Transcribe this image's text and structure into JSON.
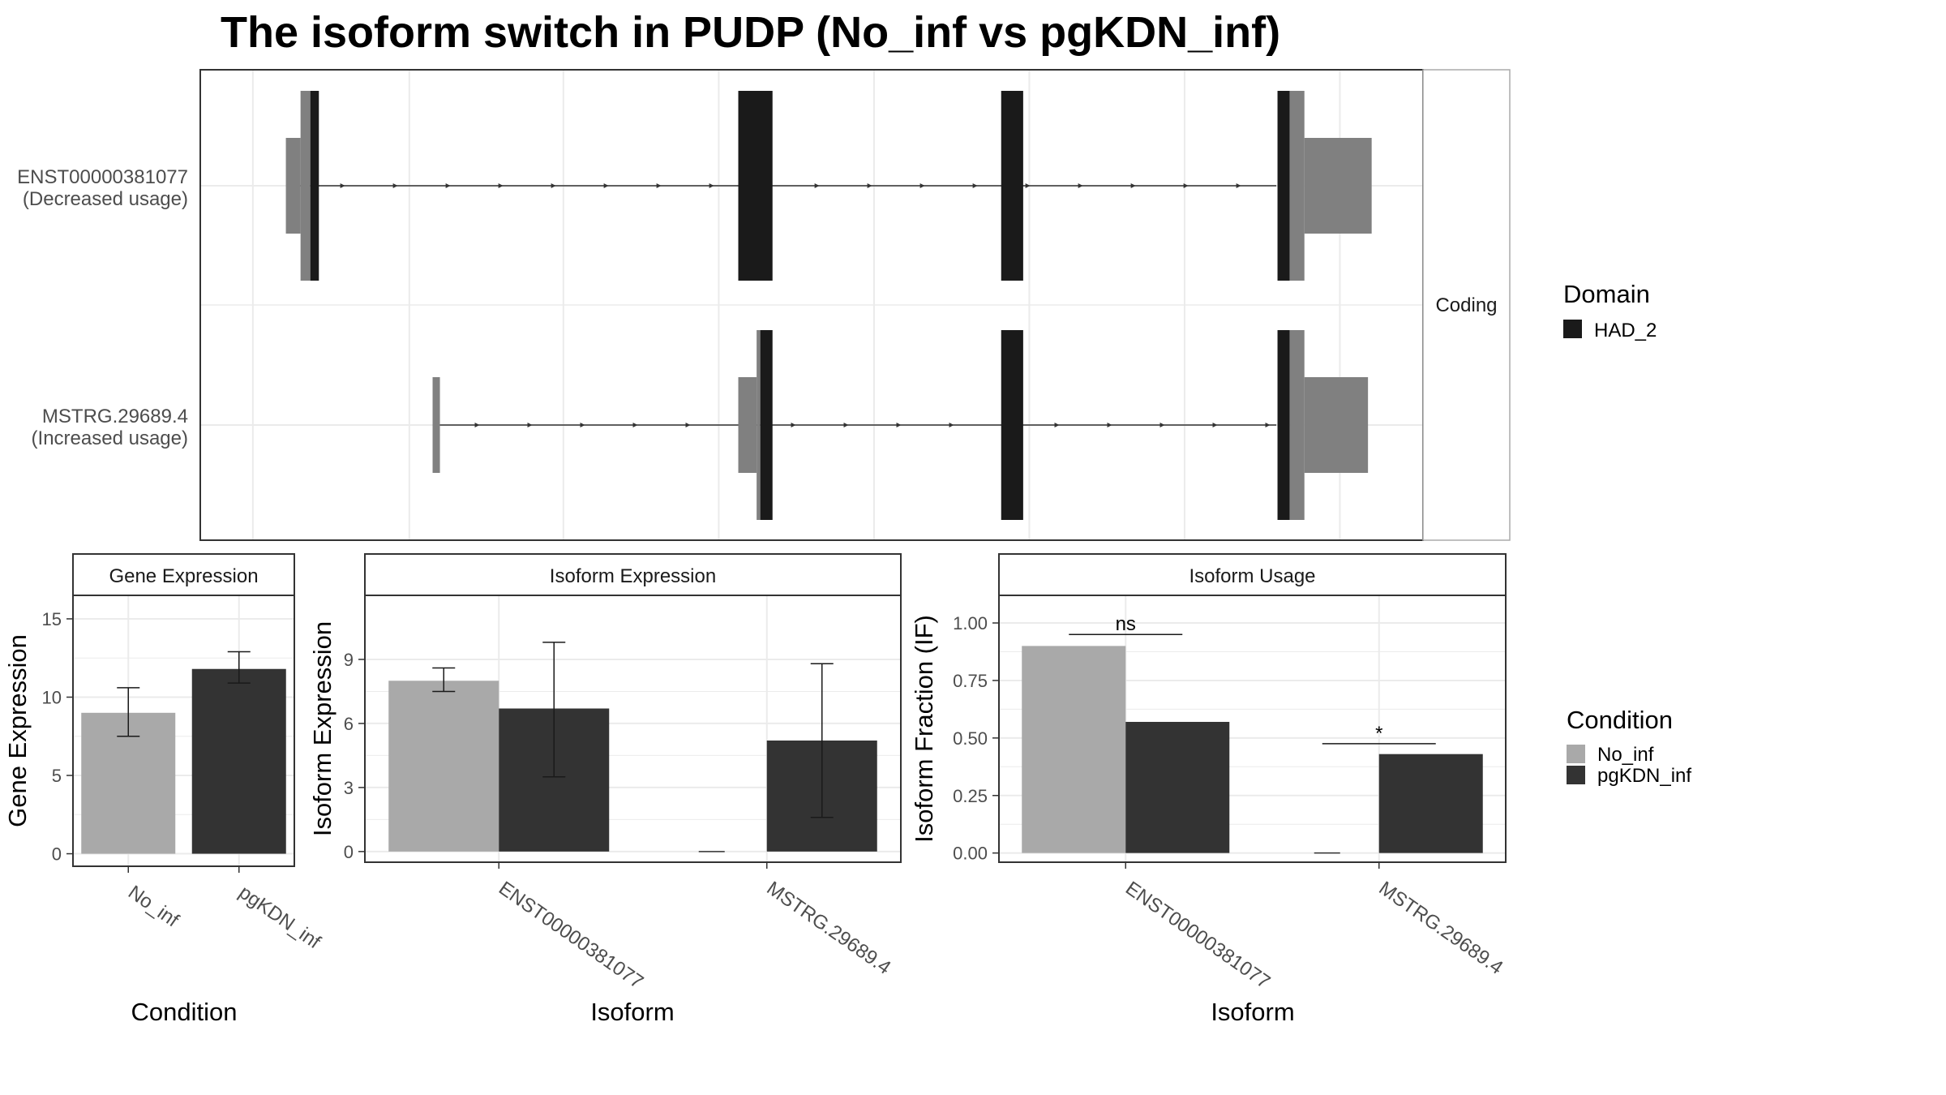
{
  "title": "The isoform switch in PUDP (No_inf vs pgKDN_inf)",
  "colors": {
    "no_inf": "#a9a9a9",
    "pgkdn_inf": "#333333",
    "domain": "#1a1a1a",
    "utr": "#808080",
    "panel_border": "#333333",
    "grid": "#ebebeb",
    "strip_bg": "#ffffff"
  },
  "chart_data": [
    {
      "id": "transcript-structure",
      "type": "diagram",
      "facet_label": "Coding",
      "legend": {
        "title": "Domain",
        "items": [
          {
            "label": "HAD_2",
            "color": "#1a1a1a"
          }
        ]
      },
      "transcripts": [
        {
          "id": "ENST00000381077",
          "label": "ENST00000381077",
          "sublabel": "(Decreased usage)",
          "intron": [
            0.08,
            0.99
          ],
          "exons": [
            {
              "start": 0.07,
              "end": 0.082,
              "kind": "utr"
            },
            {
              "start": 0.082,
              "end": 0.09,
              "kind": "utr_tall"
            },
            {
              "start": 0.09,
              "end": 0.097,
              "kind": "domain"
            },
            {
              "start": 0.44,
              "end": 0.468,
              "kind": "domain"
            },
            {
              "start": 0.655,
              "end": 0.673,
              "kind": "domain"
            },
            {
              "start": 0.881,
              "end": 0.891,
              "kind": "domain"
            },
            {
              "start": 0.891,
              "end": 0.903,
              "kind": "utr_tall"
            },
            {
              "start": 0.903,
              "end": 0.958,
              "kind": "utr"
            }
          ]
        },
        {
          "id": "MSTRG.29689.4",
          "label": "MSTRG.29689.4",
          "sublabel": "(Increased usage)",
          "intron": [
            0.19,
            0.99
          ],
          "exons": [
            {
              "start": 0.19,
              "end": 0.196,
              "kind": "utr"
            },
            {
              "start": 0.44,
              "end": 0.455,
              "kind": "utr"
            },
            {
              "start": 0.455,
              "end": 0.458,
              "kind": "utr_tall"
            },
            {
              "start": 0.458,
              "end": 0.468,
              "kind": "domain"
            },
            {
              "start": 0.655,
              "end": 0.673,
              "kind": "domain"
            },
            {
              "start": 0.881,
              "end": 0.891,
              "kind": "domain"
            },
            {
              "start": 0.891,
              "end": 0.903,
              "kind": "utr_tall"
            },
            {
              "start": 0.903,
              "end": 0.955,
              "kind": "utr"
            }
          ]
        }
      ]
    },
    {
      "id": "gene-expression",
      "type": "bar",
      "strip": "Gene Expression",
      "xlabel": "Condition",
      "ylabel": "Gene Expression",
      "ylim": [
        -0.8,
        16.5
      ],
      "yticks": [
        0,
        5,
        10,
        15
      ],
      "categories": [
        "No_inf",
        "pgKDN_inf"
      ],
      "bars": [
        {
          "category": "No_inf",
          "condition": "No_inf",
          "value": 9.0,
          "err_low": 7.5,
          "err_high": 10.6
        },
        {
          "category": "pgKDN_inf",
          "condition": "pgKDN_inf",
          "value": 11.8,
          "err_low": 10.9,
          "err_high": 12.9
        }
      ]
    },
    {
      "id": "isoform-expression",
      "type": "bar",
      "strip": "Isoform Expression",
      "xlabel": "Isoform",
      "ylabel": "Isoform Expression",
      "ylim": [
        -0.5,
        12.0
      ],
      "yticks": [
        0,
        3,
        6,
        9
      ],
      "categories": [
        "ENST00000381077",
        "MSTRG.29689.4"
      ],
      "bars": [
        {
          "category": "ENST00000381077",
          "condition": "No_inf",
          "value": 8.0,
          "err_low": 7.5,
          "err_high": 8.6
        },
        {
          "category": "ENST00000381077",
          "condition": "pgKDN_inf",
          "value": 6.7,
          "err_low": 3.5,
          "err_high": 9.8
        },
        {
          "category": "MSTRG.29689.4",
          "condition": "No_inf",
          "value": 0.0,
          "err_low": 0.0,
          "err_high": 0.0
        },
        {
          "category": "MSTRG.29689.4",
          "condition": "pgKDN_inf",
          "value": 5.2,
          "err_low": 1.6,
          "err_high": 8.8
        }
      ]
    },
    {
      "id": "isoform-usage",
      "type": "bar",
      "strip": "Isoform Usage",
      "xlabel": "Isoform",
      "ylabel": "Isoform Fraction (IF)",
      "ylim": [
        -0.04,
        1.12
      ],
      "yticks": [
        0.0,
        0.25,
        0.5,
        0.75,
        1.0
      ],
      "yticklabels": [
        "0.00",
        "0.25",
        "0.50",
        "0.75",
        "1.00"
      ],
      "categories": [
        "ENST00000381077",
        "MSTRG.29689.4"
      ],
      "bars": [
        {
          "category": "ENST00000381077",
          "condition": "No_inf",
          "value": 0.9
        },
        {
          "category": "ENST00000381077",
          "condition": "pgKDN_inf",
          "value": 0.57
        },
        {
          "category": "MSTRG.29689.4",
          "condition": "No_inf",
          "value": 0.0
        },
        {
          "category": "MSTRG.29689.4",
          "condition": "pgKDN_inf",
          "value": 0.43
        }
      ],
      "significance": [
        {
          "category": "ENST00000381077",
          "label": "ns",
          "y": 0.95
        },
        {
          "category": "MSTRG.29689.4",
          "label": "*",
          "y": 0.475
        }
      ]
    }
  ],
  "condition_legend": {
    "title": "Condition",
    "items": [
      {
        "label": "No_inf",
        "color": "#a9a9a9"
      },
      {
        "label": "pgKDN_inf",
        "color": "#333333"
      }
    ]
  }
}
